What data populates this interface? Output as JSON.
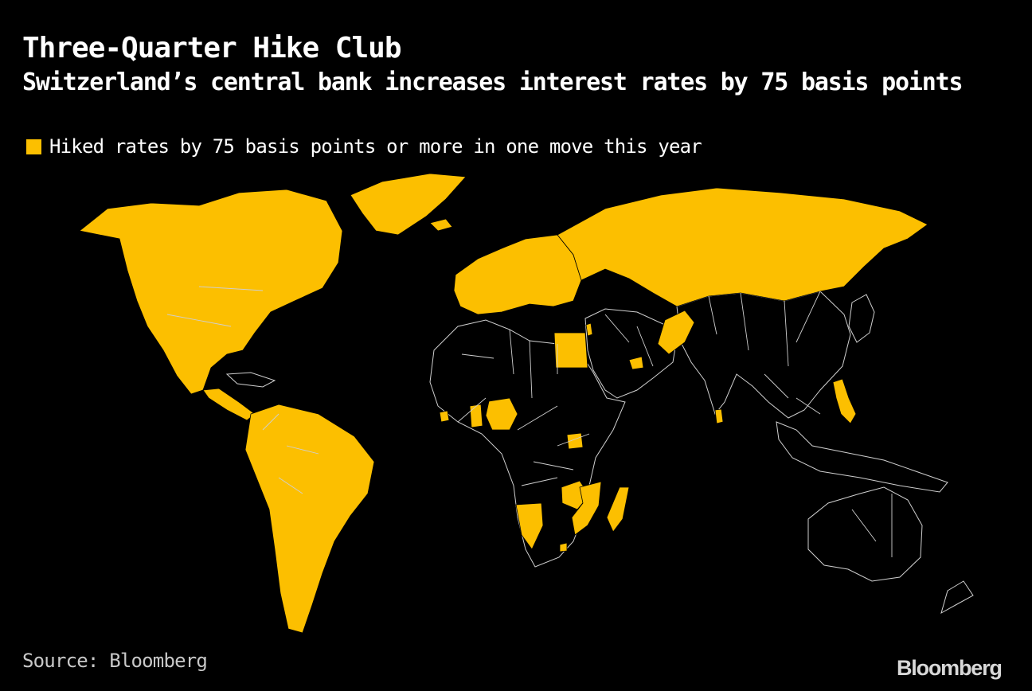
{
  "header": {
    "title": "Three-Quarter Hike Club",
    "subtitle": "Switzerland’s central bank increases interest rates by 75 basis points"
  },
  "legend": {
    "label": "Hiked rates by 75 basis points or more in one move this year",
    "color": "#fcbf00"
  },
  "map": {
    "highlighted_regions": [
      "North America",
      "Greenland",
      "Mexico",
      "Central America",
      "South America",
      "Europe",
      "Russia",
      "Pakistan",
      "Egypt",
      "Nigeria",
      "Ghana",
      "Uganda",
      "Mozambique",
      "Namibia",
      "Zambia",
      "Madagascar",
      "Philippines",
      "Sri Lanka",
      "Israel",
      "Hungary",
      "Iceland"
    ],
    "highlight_color": "#fcbf00",
    "background_color": "#000000"
  },
  "footer": {
    "source": "Source: Bloomberg",
    "logo": "Bloomberg"
  }
}
